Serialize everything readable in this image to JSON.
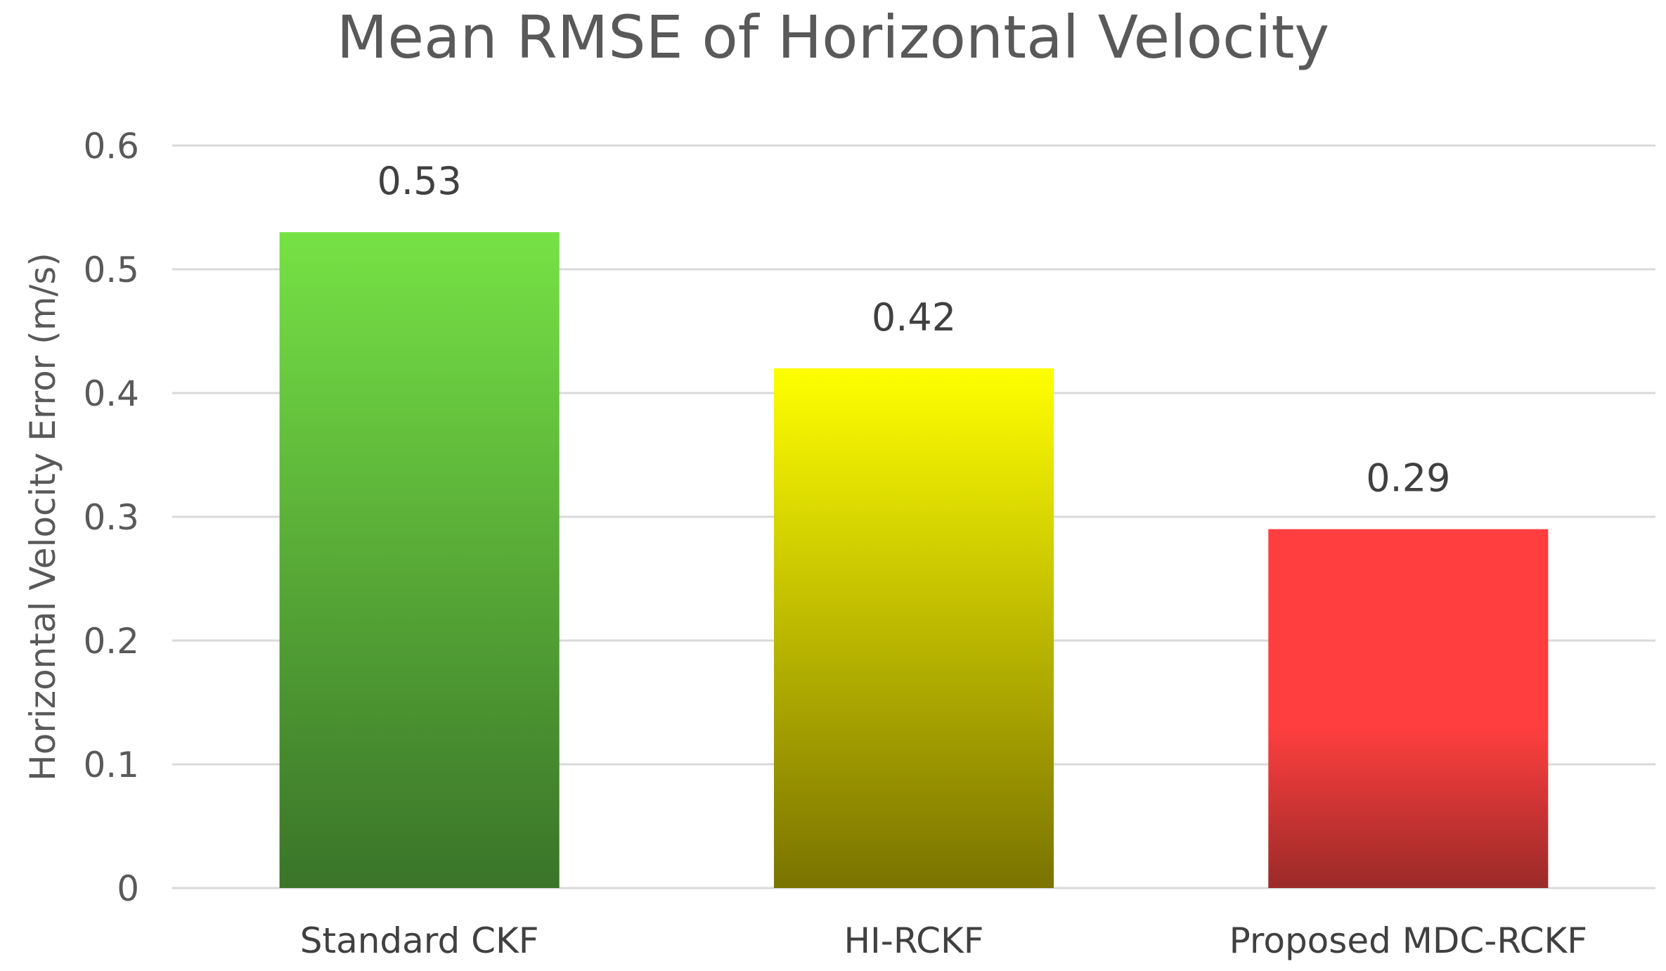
{
  "chart_data": {
    "type": "bar",
    "title": "Mean RMSE of Horizontal Velocity",
    "xlabel": "",
    "ylabel": "Horizontal Velocity Error (m/s)",
    "categories": [
      "Standard CKF",
      "HI-RCKF",
      "Proposed MDC-RCKF"
    ],
    "values": [
      0.53,
      0.42,
      0.29
    ],
    "data_labels": [
      "0.53",
      "0.42",
      "0.29"
    ],
    "ylim": [
      0,
      0.6
    ],
    "yticks": [
      0,
      0.1,
      0.2,
      0.3,
      0.4,
      0.5,
      0.6
    ],
    "ytick_labels": [
      "0",
      "0.1",
      "0.2",
      "0.3",
      "0.4",
      "0.5",
      "0.6"
    ],
    "grid": true,
    "legend": "none",
    "bar_colors": [
      {
        "top": "#76e245",
        "bottom": "#3a7429"
      },
      {
        "top": "#ffff00",
        "bottom": "#7a7300"
      },
      {
        "top": "#ff3f3f",
        "bottom": "#9a2a28"
      }
    ]
  }
}
